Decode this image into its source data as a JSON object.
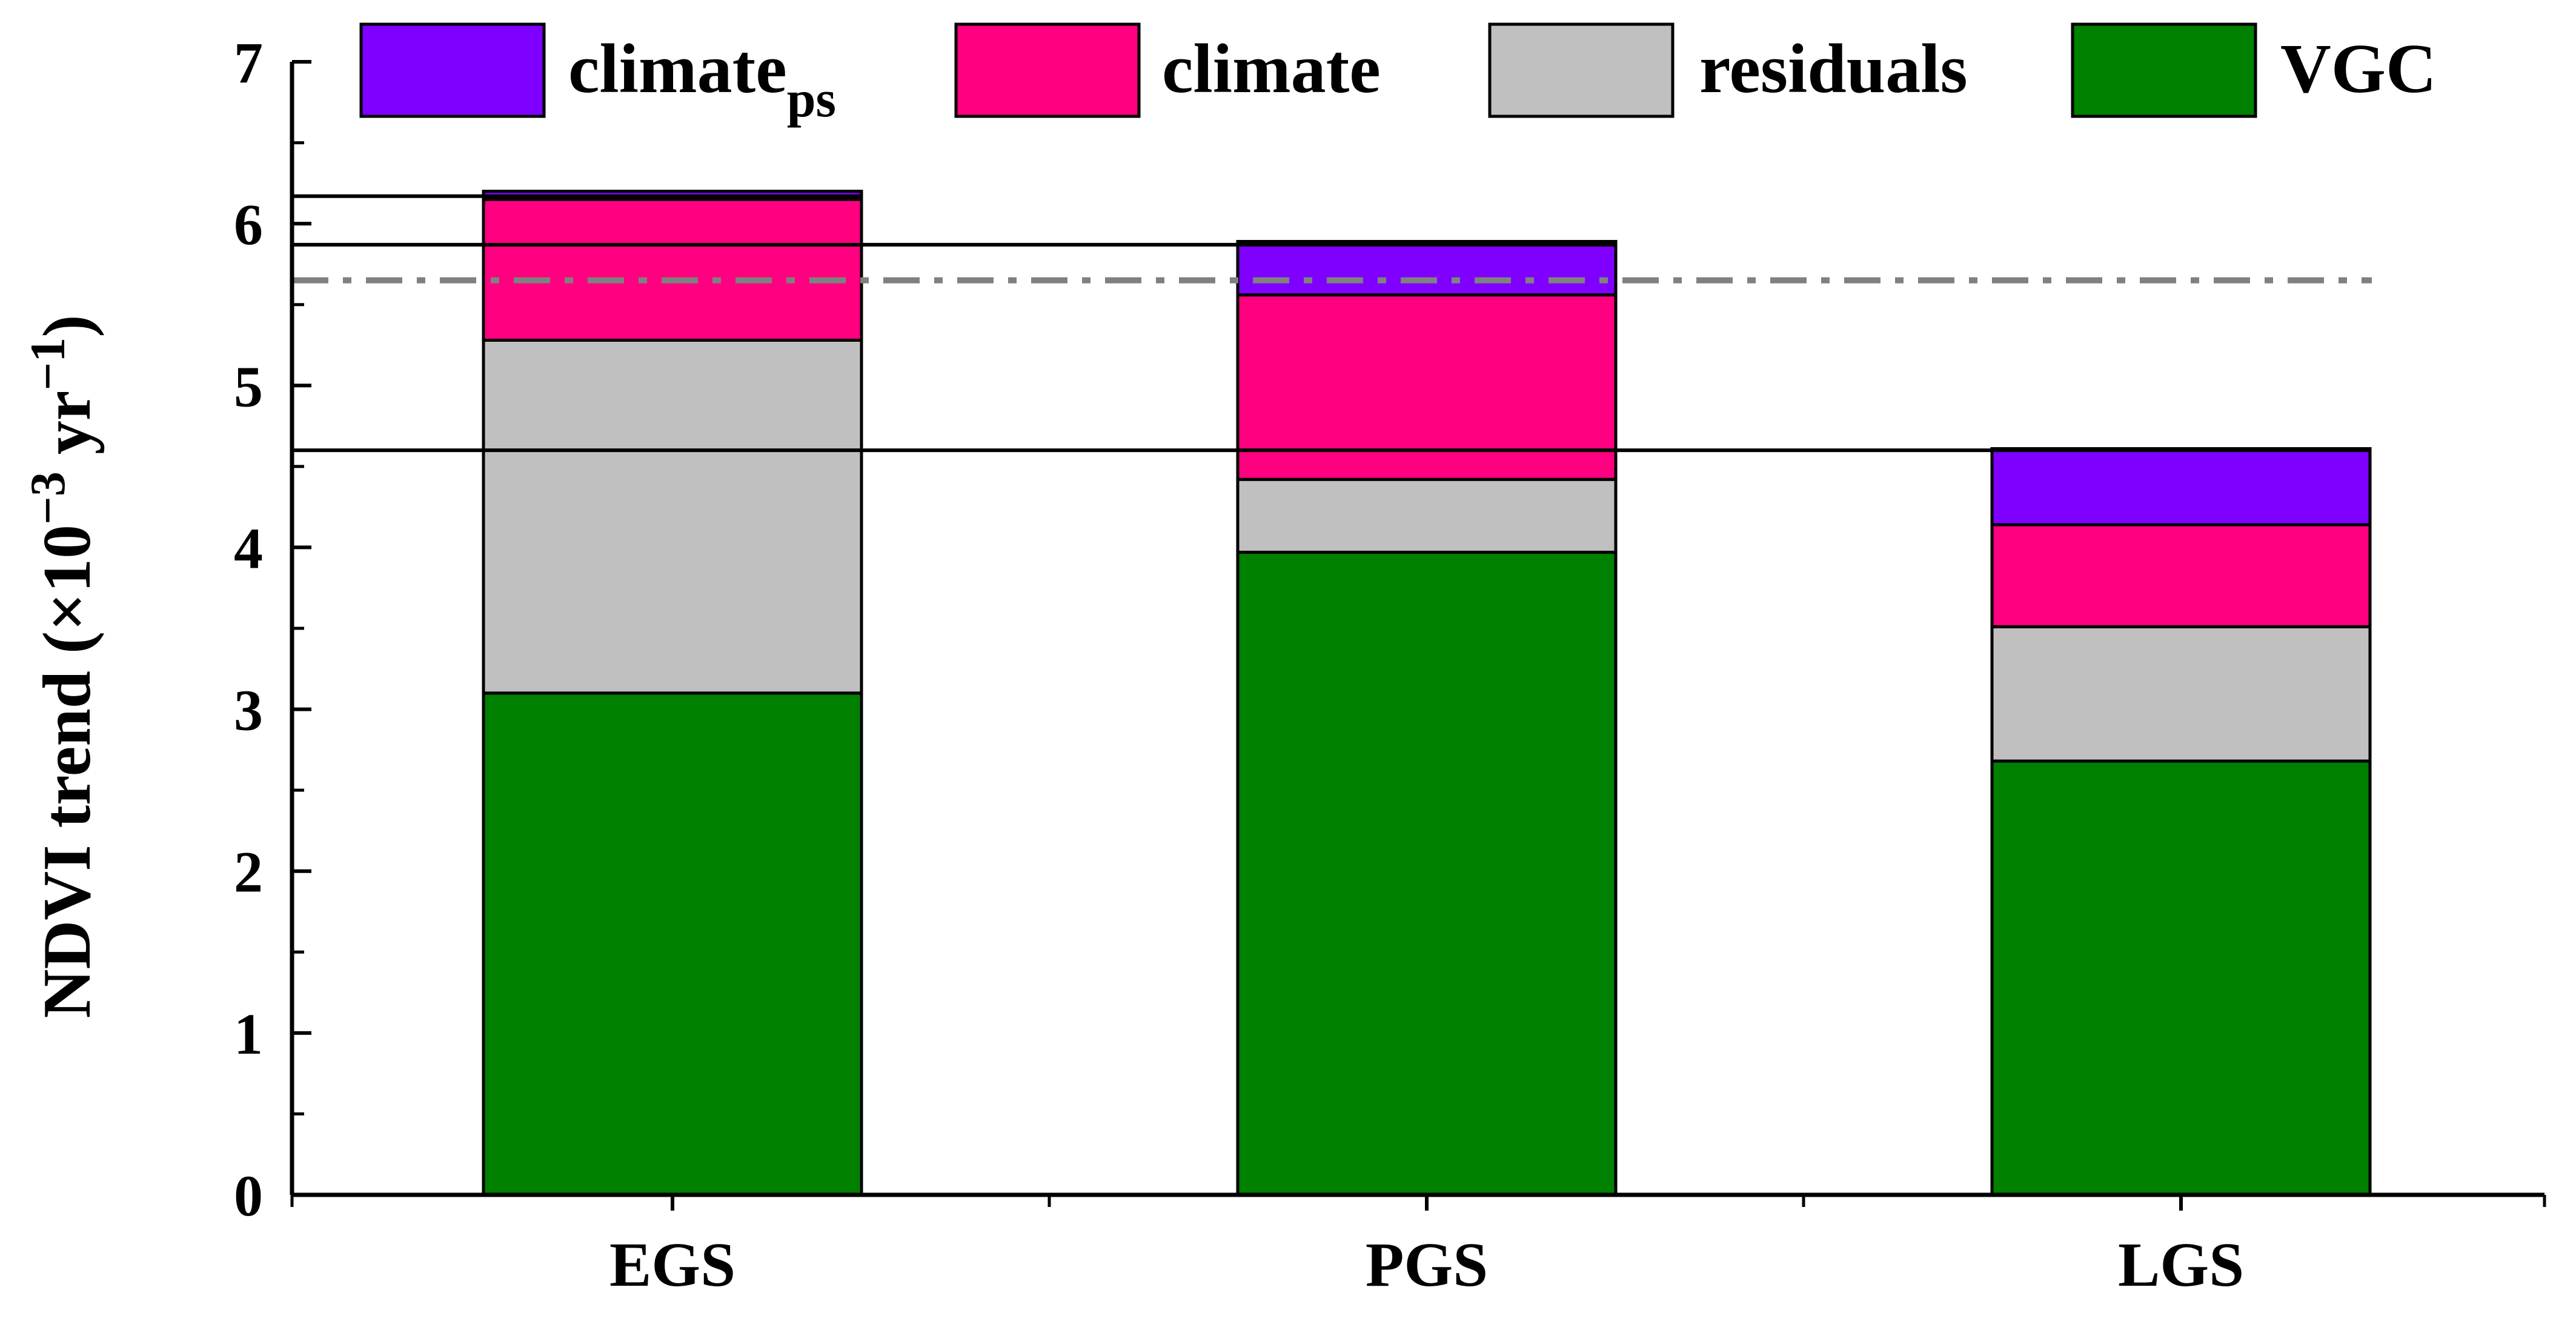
{
  "chart_data": {
    "type": "bar",
    "stacked": true,
    "title": "",
    "xlabel": "",
    "ylabel": {
      "prefix": "NDVI trend  (×10",
      "exp1": "−3",
      "mid": " yr",
      "exp2": "−1",
      "suffix": ")"
    },
    "ylim": [
      0,
      7
    ],
    "yticks": [
      "0",
      "1",
      "2",
      "3",
      "4",
      "5",
      "6",
      "7"
    ],
    "categories": [
      "EGS",
      "PGS",
      "LGS"
    ],
    "series": [
      {
        "name": "VGC",
        "color": "#008000",
        "values": [
          3.1,
          3.97,
          2.68
        ]
      },
      {
        "name": "residuals",
        "color": "#c0c0c0",
        "values": [
          2.18,
          0.45,
          0.83
        ]
      },
      {
        "name": "climate",
        "color": "#ff0080",
        "values": [
          0.87,
          1.14,
          0.63
        ]
      },
      {
        "name": "climate_ps",
        "color": "#8000ff",
        "values": [
          0.05,
          0.33,
          0.47
        ]
      }
    ],
    "legend": [
      {
        "key": "climate_ps",
        "text": "climate",
        "sub": "ps",
        "color": "#8000ff"
      },
      {
        "key": "climate",
        "text": "climate",
        "color": "#ff0080"
      },
      {
        "key": "residuals",
        "text": "residuals",
        "color": "#c0c0c0"
      },
      {
        "key": "VGC",
        "text": "VGC",
        "color": "#008000"
      }
    ],
    "legend_position": "top",
    "reference_lines": [
      {
        "value": 6.17,
        "style": "solid",
        "color": "#000000",
        "span": "EGS"
      },
      {
        "value": 5.87,
        "style": "solid",
        "color": "#000000",
        "span": "PGS"
      },
      {
        "value": 5.65,
        "style": "dash-dot",
        "color": "#808080",
        "span": "all"
      },
      {
        "value": 4.6,
        "style": "solid",
        "color": "#000000",
        "span": "LGS"
      }
    ]
  }
}
